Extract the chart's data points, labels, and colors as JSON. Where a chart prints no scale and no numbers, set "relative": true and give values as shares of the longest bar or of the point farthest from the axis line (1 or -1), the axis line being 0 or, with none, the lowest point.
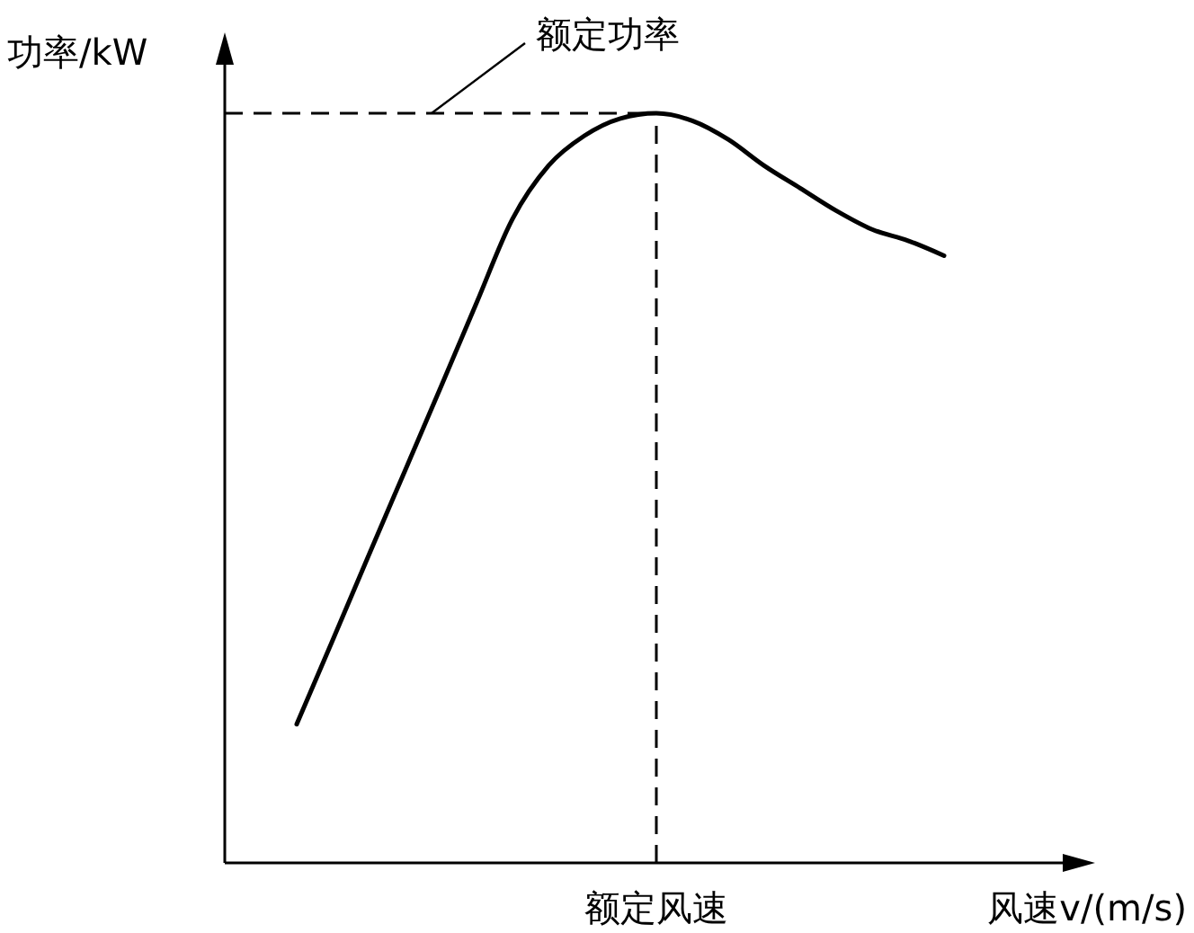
{
  "chart_data": {
    "type": "line",
    "relative": true,
    "xlabel": "风速v/(m/s)",
    "ylabel": "功率/kW",
    "categories": [
      null,
      null,
      null,
      null,
      null,
      null,
      null,
      null,
      null,
      null,
      null,
      null,
      null,
      null,
      null,
      null,
      null,
      null,
      null,
      null,
      null,
      null,
      null,
      null,
      null
    ],
    "series": [
      {
        "color": "#000000",
        "values": [
          null,
          null,
          0.185,
          0.297,
          0.41,
          0.522,
          0.634,
          0.747,
          0.859,
          0.93,
          0.97,
          0.993,
          1.0,
          0.99,
          0.965,
          0.93,
          0.9,
          0.87,
          0.845,
          0.83,
          0.81,
          null,
          null,
          null,
          null
        ]
      }
    ],
    "ref_lines": [
      {
        "axis": "y",
        "value": 1,
        "label": "额定功率",
        "line_style": "dashed",
        "color": "#000000"
      },
      {
        "axis": "x",
        "label": "额定风速",
        "line_style": "dashed",
        "color": "#000000"
      }
    ],
    "grid": false,
    "legend": false,
    "marker": "none",
    "line_style": "solid"
  }
}
